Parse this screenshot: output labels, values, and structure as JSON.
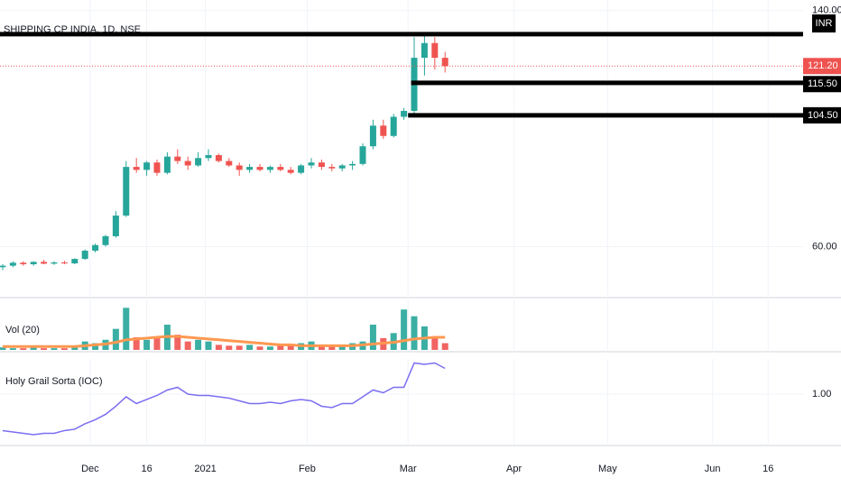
{
  "chart_data": [
    {
      "type": "candlestick",
      "title": "SHIPPING CP INDIA, 1D, NSE",
      "currency": "INR",
      "open": [
        53,
        53.5,
        54.5,
        54,
        54.8,
        54.2,
        54.6,
        54.3,
        55.8,
        58.6,
        60.5,
        63.5,
        70.5,
        87,
        86,
        88.5,
        85,
        90.5,
        89,
        87.5,
        90,
        91,
        89,
        87.5,
        86,
        87,
        86,
        87,
        86,
        85,
        87.5,
        88.5,
        87,
        86.5,
        87.5,
        88,
        94,
        101,
        97.5,
        104,
        106,
        124,
        129,
        124
      ],
      "high": [
        54,
        55,
        55,
        55,
        55.5,
        55,
        55.2,
        56,
        59,
        61,
        64,
        72,
        89,
        90,
        89,
        89.5,
        92,
        93,
        90.5,
        92,
        93,
        91.5,
        90,
        88.5,
        88,
        88,
        87.5,
        88,
        87,
        88,
        90,
        89.5,
        88,
        88,
        89,
        95,
        103,
        103,
        105,
        107,
        131,
        132,
        131,
        126
      ],
      "low": [
        52,
        53,
        53.5,
        53.5,
        54,
        53.8,
        54,
        54,
        55.5,
        58,
        60,
        63,
        70,
        85,
        84,
        84,
        84.5,
        88,
        86,
        87,
        89,
        88.5,
        87,
        84,
        85,
        85.5,
        85,
        85.5,
        84.5,
        84.5,
        86.5,
        86,
        85.5,
        85.5,
        86,
        87.5,
        93,
        96.5,
        97,
        103,
        105,
        118,
        120,
        119
      ],
      "close": [
        53.5,
        54.5,
        54,
        54.8,
        54.2,
        54.6,
        54.3,
        55.8,
        58.6,
        60.5,
        63.5,
        70.5,
        87,
        86,
        88.5,
        85,
        90.5,
        89,
        87.5,
        90,
        91,
        89,
        87.5,
        86,
        87,
        86,
        87,
        86,
        85,
        87.5,
        88.5,
        87,
        86.5,
        87.5,
        88,
        94,
        101,
        97.5,
        104,
        106,
        124,
        129,
        124,
        121.2
      ],
      "up_color": "#26a69a",
      "down_color": "#ef5350",
      "xlim": [
        -0.26,
        77.8
      ],
      "ylim": [
        43.3,
        143.6
      ],
      "yticks": [
        {
          "value": 60,
          "label": "60.00"
        },
        {
          "value": 140,
          "label": "140.00"
        }
      ],
      "last_price": {
        "value": 121.2,
        "label": "121.20",
        "color": "#ef5350"
      },
      "levels": [
        {
          "value": 132
        },
        {
          "value": 115.5,
          "label": "115.50",
          "from": 39.7
        },
        {
          "value": 104.5,
          "label": "104.50",
          "from": 39.4
        }
      ]
    },
    {
      "type": "volume",
      "title": "Vol (20)",
      "values": [
        3,
        2,
        2,
        3,
        2,
        2,
        2,
        5,
        10,
        8,
        12,
        25,
        50,
        15,
        12,
        14,
        30,
        18,
        10,
        12,
        10,
        6,
        5,
        5,
        6,
        4,
        4,
        5,
        5,
        8,
        10,
        6,
        5,
        6,
        8,
        10,
        30,
        14,
        20,
        48,
        40,
        28,
        16,
        8
      ],
      "ma_values": [
        4,
        4,
        4,
        4,
        4,
        4,
        4,
        4,
        5,
        6,
        7,
        9,
        12,
        13,
        14,
        15,
        16,
        16,
        15,
        14,
        13,
        12,
        11,
        10,
        9,
        8,
        7,
        6,
        6,
        5,
        5,
        5,
        5,
        5,
        5,
        6,
        7,
        8,
        9,
        11,
        13,
        14,
        15,
        15
      ],
      "ma_color": "#ff9850",
      "xlim": [
        -0.26,
        77.8
      ],
      "ylim": [
        0,
        60
      ]
    },
    {
      "type": "line",
      "title": "Holy Grail Sorta (IOC)",
      "values": [
        0.73,
        0.72,
        0.71,
        0.7,
        0.71,
        0.71,
        0.73,
        0.74,
        0.78,
        0.81,
        0.85,
        0.91,
        0.98,
        0.93,
        0.96,
        0.99,
        1.03,
        1.05,
        1.0,
        0.99,
        0.99,
        0.98,
        0.97,
        0.95,
        0.93,
        0.93,
        0.94,
        0.93,
        0.95,
        0.96,
        0.95,
        0.91,
        0.9,
        0.93,
        0.93,
        0.98,
        1.03,
        1.01,
        1.05,
        1.05,
        1.23,
        1.22,
        1.23,
        1.19
      ],
      "color": "#7b6ef0",
      "xlim": [
        -0.26,
        77.8
      ],
      "ylim": [
        0.633,
        1.26
      ],
      "yticks": [
        {
          "value": 1,
          "label": "1.00"
        }
      ],
      "xticks": [
        {
          "value": 8.5,
          "label": "Dec"
        },
        {
          "value": 14,
          "label": "16"
        },
        {
          "value": 19.7,
          "label": "2021"
        },
        {
          "value": 29.6,
          "label": "Feb"
        },
        {
          "value": 39.4,
          "label": "Mar"
        },
        {
          "value": 49.7,
          "label": "Apr"
        },
        {
          "value": 58.8,
          "label": "May"
        },
        {
          "value": 69,
          "label": "Jun"
        },
        {
          "value": 74.4,
          "label": "16"
        }
      ]
    }
  ]
}
